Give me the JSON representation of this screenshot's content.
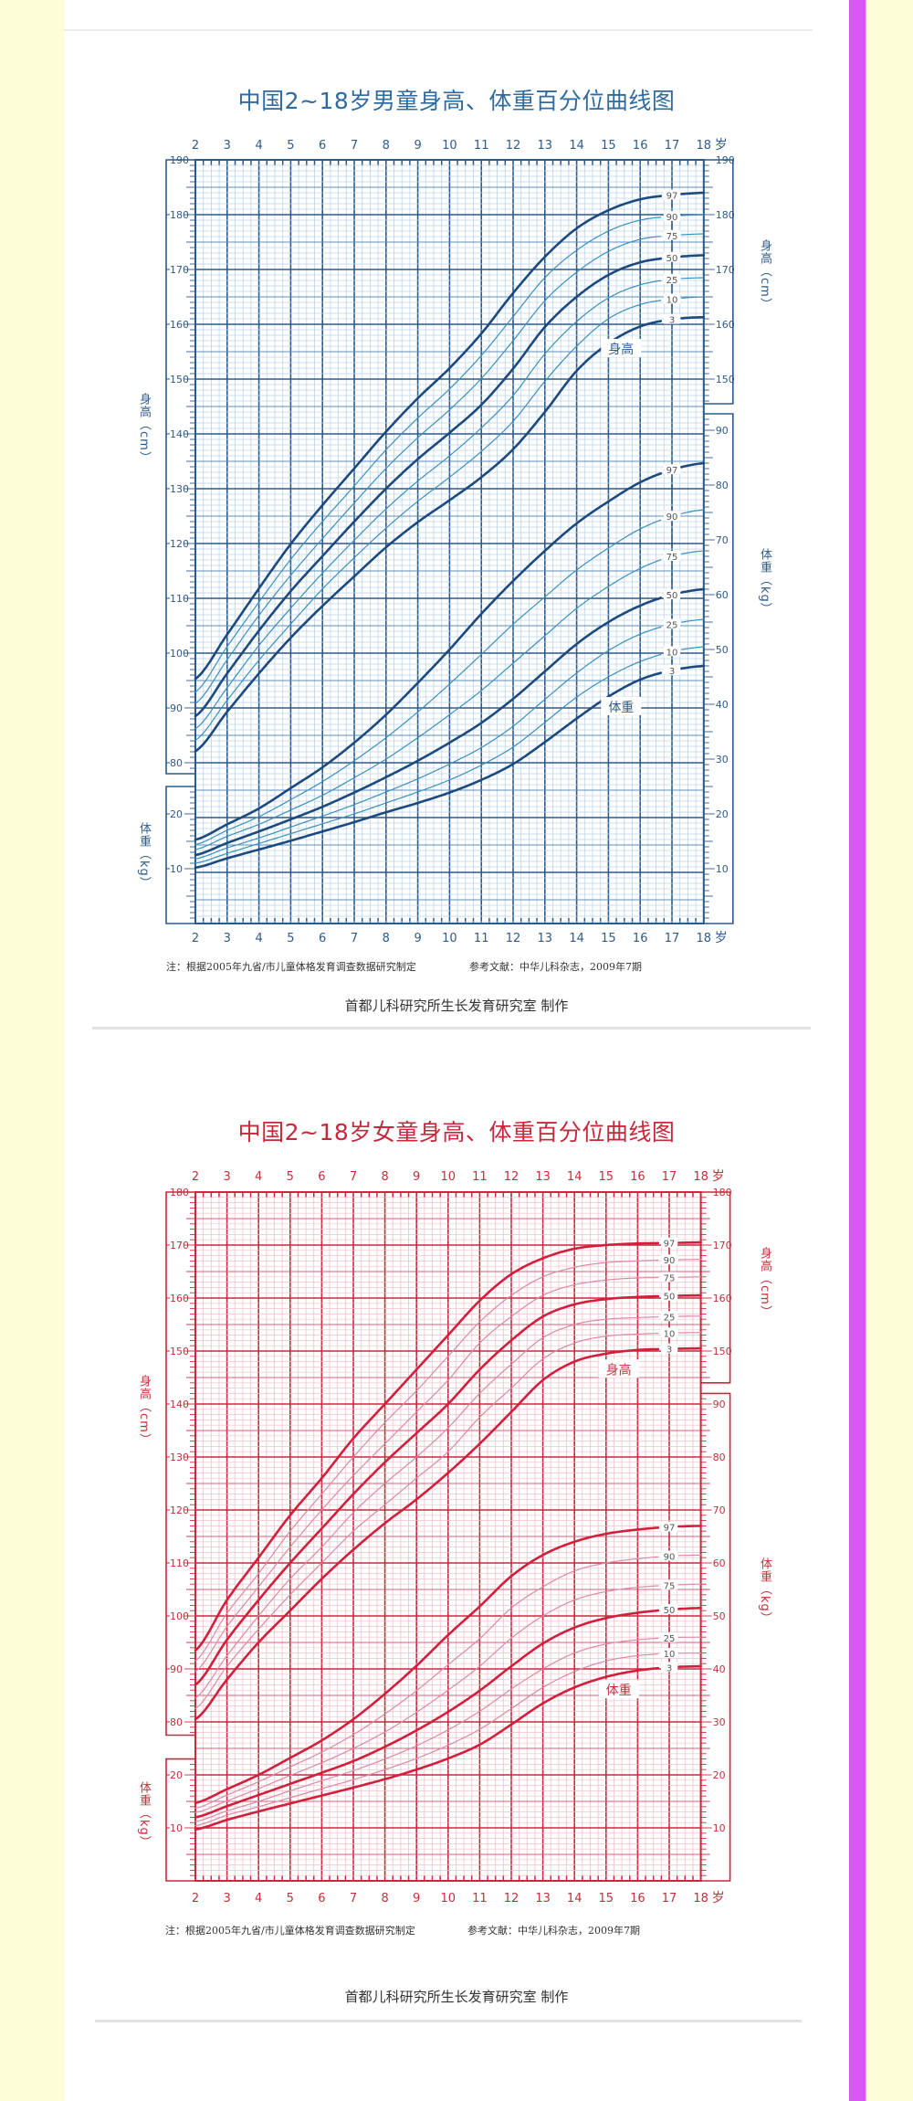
{
  "colors": {
    "background": "#fdfdd8",
    "side_bar": "#d957f2",
    "boys": {
      "title": "#2f6aa0",
      "text": "#2e5b8a",
      "major": "#2b5a8c",
      "medium": "#5f8fbd",
      "minor": "#bcd4e8",
      "thick": "#1d4a7e",
      "thin": "#3a90bd"
    },
    "girls": {
      "title": "#c8283c",
      "text": "#c0303c",
      "major": "#c9283e",
      "medium": "#d9607a",
      "minor": "#f2c0c8",
      "thick": "#d11f3c",
      "thin": "#d98aa6"
    }
  },
  "chart_data": [
    {
      "type": "line",
      "title": "中国2~18岁男童身高、体重百分位曲线图",
      "x": [
        2,
        3,
        4,
        5,
        6,
        7,
        8,
        9,
        10,
        11,
        12,
        13,
        14,
        15,
        16,
        17,
        18
      ],
      "x_unit": "岁",
      "height_axis": {
        "label": "身高（cm）",
        "left_ticks": [
          190,
          180,
          170,
          160,
          150,
          140,
          130,
          120,
          110,
          100,
          90,
          80
        ],
        "right_ticks": [
          190,
          180,
          170,
          160,
          150
        ]
      },
      "weight_axis": {
        "label": "体重（kg）",
        "left_ticks": [
          20,
          10
        ],
        "right_ticks": [
          90,
          80,
          70,
          60,
          50,
          40,
          30,
          20,
          10
        ]
      },
      "grid": true,
      "curve_labels": {
        "height": "身高",
        "weight": "体重"
      },
      "percentiles": [
        "97",
        "90",
        "75",
        "50",
        "25",
        "10",
        "3"
      ],
      "height": {
        "97": [
          95.3,
          103.4,
          111.8,
          119.9,
          127.0,
          133.7,
          140.4,
          146.5,
          152.0,
          158.3,
          165.7,
          172.3,
          177.5,
          180.8,
          182.8,
          183.6,
          184.0
        ],
        "90": [
          92.9,
          101.2,
          109.3,
          117.1,
          124.0,
          130.5,
          137.1,
          142.9,
          148.2,
          154.3,
          161.4,
          168.5,
          173.5,
          177.0,
          179.0,
          179.7,
          180.0
        ],
        "75": [
          90.8,
          98.8,
          106.9,
          114.2,
          120.9,
          127.4,
          133.7,
          139.3,
          144.4,
          150.1,
          157.0,
          164.3,
          169.5,
          173.3,
          175.5,
          176.2,
          176.5
        ],
        "50": [
          88.5,
          96.3,
          104.1,
          111.3,
          117.7,
          124.0,
          130.0,
          135.4,
          140.2,
          145.3,
          151.9,
          159.5,
          165.0,
          169.0,
          171.3,
          172.2,
          172.6
        ],
        "25": [
          86.2,
          93.7,
          101.4,
          108.2,
          114.6,
          120.6,
          126.3,
          131.4,
          136.0,
          141.1,
          147.0,
          154.6,
          160.5,
          164.8,
          167.2,
          168.2,
          168.5
        ],
        "10": [
          84.1,
          91.4,
          98.7,
          105.3,
          111.7,
          117.4,
          122.8,
          127.7,
          132.1,
          136.8,
          142.3,
          149.6,
          156.0,
          161.0,
          163.6,
          164.6,
          165.0
        ],
        "3": [
          82.1,
          89.3,
          96.3,
          102.8,
          108.6,
          114.0,
          119.3,
          123.9,
          127.9,
          132.1,
          137.2,
          144.0,
          151.5,
          156.5,
          159.6,
          160.9,
          161.3
        ]
      },
      "weight": {
        "97": [
          15.3,
          18.1,
          21.0,
          24.7,
          28.5,
          33.0,
          38.1,
          43.9,
          50.0,
          56.5,
          62.5,
          68.0,
          73.0,
          77.0,
          80.5,
          82.8,
          84.0
        ],
        "90": [
          14.4,
          17.0,
          19.5,
          22.6,
          25.9,
          29.7,
          33.9,
          38.6,
          43.7,
          49.1,
          54.6,
          59.6,
          64.5,
          68.5,
          72.0,
          74.3,
          75.5
        ],
        "75": [
          13.5,
          15.9,
          18.1,
          20.7,
          23.4,
          26.6,
          30.0,
          33.9,
          38.1,
          42.5,
          47.5,
          52.5,
          57.5,
          61.5,
          64.8,
          67.0,
          68.0
        ],
        "50": [
          12.5,
          14.7,
          16.8,
          19.0,
          21.3,
          23.9,
          26.7,
          29.7,
          33.0,
          36.6,
          41.0,
          46.0,
          51.0,
          55.0,
          58.0,
          60.0,
          61.0
        ],
        "25": [
          11.8,
          13.8,
          15.6,
          17.6,
          19.6,
          21.7,
          24.0,
          26.4,
          29.1,
          32.1,
          36.0,
          40.9,
          45.7,
          49.8,
          52.8,
          54.6,
          55.5
        ],
        "10": [
          11.0,
          12.8,
          14.6,
          16.4,
          18.2,
          20.0,
          22.0,
          24.0,
          26.2,
          28.9,
          32.2,
          36.7,
          41.3,
          45.0,
          47.8,
          49.6,
          50.5
        ],
        "3": [
          10.2,
          11.9,
          13.5,
          15.1,
          16.8,
          18.5,
          20.3,
          22.0,
          23.9,
          26.2,
          29.1,
          33.1,
          37.4,
          41.4,
          44.5,
          46.2,
          47.0
        ]
      },
      "footnote": "注：根据2005年九省/市儿童体格发育调查数据研究制定",
      "reference": "参考文献：中华儿科杂志，2009年7期",
      "credit": "首都儿科研究所生长发育研究室  制作"
    },
    {
      "type": "line",
      "title": "中国2~18岁女童身高、体重百分位曲线图",
      "x": [
        2,
        3,
        4,
        5,
        6,
        7,
        8,
        9,
        10,
        11,
        12,
        13,
        14,
        15,
        16,
        17,
        18
      ],
      "x_unit": "岁",
      "height_axis": {
        "label": "身高（cm）",
        "left_ticks": [
          180,
          170,
          160,
          150,
          140,
          130,
          120,
          110,
          100,
          90,
          80
        ],
        "right_ticks": [
          180,
          170,
          160,
          150
        ]
      },
      "weight_axis": {
        "label": "体重（kg）",
        "left_ticks": [
          20,
          10
        ],
        "right_ticks": [
          90,
          80,
          70,
          60,
          50,
          40,
          30,
          20,
          10
        ]
      },
      "grid": true,
      "curve_labels": {
        "height": "身高",
        "weight": "体重"
      },
      "percentiles": [
        "97",
        "90",
        "75",
        "50",
        "25",
        "10",
        "3"
      ],
      "height": {
        "97": [
          93.5,
          103.0,
          111.0,
          119.0,
          126.0,
          133.5,
          140.0,
          146.5,
          153.0,
          159.5,
          164.5,
          167.5,
          169.3,
          170.0,
          170.3,
          170.4,
          170.5
        ],
        "90": [
          91.5,
          100.5,
          108.0,
          116.0,
          123.0,
          130.0,
          136.5,
          142.5,
          149.0,
          155.5,
          160.5,
          164.0,
          165.8,
          166.7,
          167.0,
          167.2,
          167.3
        ],
        "75": [
          89.5,
          98.0,
          105.5,
          113.0,
          120.0,
          126.5,
          132.5,
          138.5,
          144.5,
          151.5,
          156.5,
          160.5,
          162.5,
          163.4,
          163.8,
          163.9,
          164.0
        ],
        "50": [
          87.0,
          95.5,
          103.0,
          110.0,
          116.5,
          123.0,
          129.0,
          134.5,
          140.0,
          146.5,
          152.0,
          156.5,
          158.8,
          159.8,
          160.2,
          160.4,
          160.5
        ],
        "25": [
          84.5,
          92.5,
          100.0,
          107.0,
          113.0,
          119.5,
          125.0,
          130.0,
          135.5,
          142.0,
          147.5,
          152.5,
          155.0,
          156.0,
          156.3,
          156.5,
          156.6
        ],
        "10": [
          82.5,
          90.5,
          97.5,
          104.0,
          110.0,
          116.0,
          121.0,
          126.0,
          131.0,
          137.5,
          143.0,
          148.5,
          151.5,
          152.8,
          153.2,
          153.4,
          153.5
        ],
        "3": [
          80.5,
          88.0,
          95.0,
          101.0,
          107.0,
          112.5,
          117.5,
          122.0,
          127.0,
          132.5,
          138.5,
          144.5,
          148.0,
          149.5,
          150.2,
          150.4,
          150.5
        ]
      },
      "weight": {
        "97": [
          14.7,
          17.3,
          20.0,
          23.2,
          26.5,
          30.5,
          35.3,
          40.6,
          46.4,
          51.8,
          57.5,
          61.5,
          64.0,
          65.5,
          66.3,
          66.8,
          67.0
        ],
        "90": [
          13.7,
          16.2,
          18.7,
          21.5,
          24.3,
          27.6,
          31.5,
          35.9,
          40.8,
          45.7,
          51.5,
          55.5,
          58.5,
          60.0,
          60.8,
          61.3,
          61.5
        ],
        "75": [
          12.9,
          15.1,
          17.4,
          19.9,
          22.3,
          25.0,
          28.1,
          31.8,
          36.0,
          40.5,
          45.8,
          50.0,
          53.0,
          54.6,
          55.4,
          55.8,
          56.0
        ],
        "50": [
          12.0,
          14.1,
          16.2,
          18.3,
          20.4,
          22.6,
          25.3,
          28.4,
          31.9,
          35.9,
          40.5,
          44.8,
          47.8,
          49.6,
          50.6,
          51.2,
          51.5
        ],
        "25": [
          11.2,
          13.2,
          15.0,
          17.0,
          18.9,
          20.8,
          23.0,
          25.5,
          28.5,
          32.0,
          36.2,
          40.0,
          43.0,
          44.7,
          45.5,
          45.9,
          46.0
        ],
        "10": [
          10.4,
          12.4,
          14.0,
          15.7,
          17.4,
          19.1,
          21.0,
          23.1,
          25.6,
          28.6,
          32.5,
          36.5,
          39.5,
          41.5,
          42.5,
          42.9,
          43.0
        ],
        "3": [
          9.7,
          11.5,
          13.1,
          14.6,
          16.1,
          17.6,
          19.2,
          21.0,
          23.1,
          25.7,
          29.5,
          33.5,
          36.5,
          38.5,
          39.7,
          40.3,
          40.5
        ]
      },
      "footnote": "注：根据2005年九省/市儿童体格发育调查数据研究制定",
      "reference": "参考文献：中华儿科杂志，2009年7期",
      "credit": "首都儿科研究所生长发育研究室  制作"
    }
  ]
}
